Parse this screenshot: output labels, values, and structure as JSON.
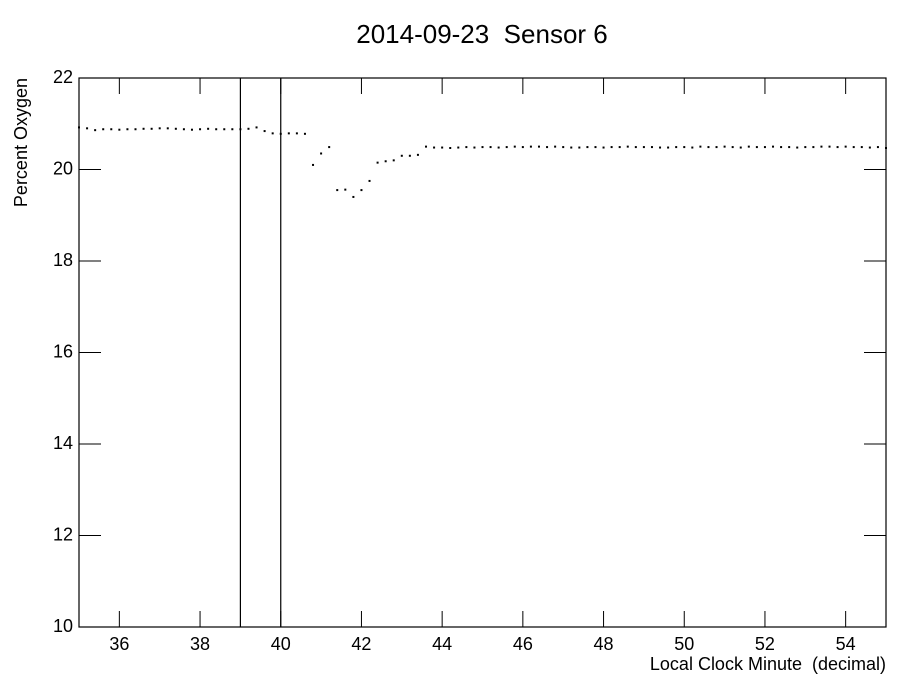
{
  "chart_data": {
    "type": "scatter",
    "title": "2014-09-23  Sensor 6",
    "x_label": "Local Clock Minute  (decimal)",
    "y_label": "Percent Oxygen",
    "xlim": [
      35,
      55
    ],
    "ylim": [
      10,
      22
    ],
    "xticks": [
      36,
      38,
      40,
      42,
      44,
      46,
      48,
      50,
      52,
      54
    ],
    "yticks": [
      10,
      12,
      14,
      16,
      18,
      20,
      22
    ],
    "vlines": [
      39,
      40
    ],
    "color": "#000000",
    "series": [
      {
        "name": "Sensor 6",
        "color": "#000000",
        "x": [
          35,
          35.2,
          35.4,
          35.6,
          35.8,
          36,
          36.2,
          36.4,
          36.6,
          36.8,
          37,
          37.2,
          37.4,
          37.6,
          37.8,
          38,
          38.2,
          38.4,
          38.6,
          38.8,
          39,
          39.2,
          39.4,
          39.6,
          39.8,
          40,
          40.2,
          40.4,
          40.6,
          40.8,
          41,
          41.2,
          41.4,
          41.6,
          41.8,
          42,
          42.2,
          42.4,
          42.6,
          42.8,
          43,
          43.2,
          43.4,
          43.6,
          43.8,
          44,
          44.2,
          44.4,
          44.6,
          44.8,
          45,
          45.2,
          45.4,
          45.6,
          45.8,
          46,
          46.2,
          46.4,
          46.6,
          46.8,
          47,
          47.2,
          47.4,
          47.6,
          47.8,
          48,
          48.2,
          48.4,
          48.6,
          48.8,
          49,
          49.2,
          49.4,
          49.6,
          49.8,
          50,
          50.2,
          50.4,
          50.6,
          50.8,
          51,
          51.2,
          51.4,
          51.6,
          51.8,
          52,
          52.2,
          52.4,
          52.6,
          52.8,
          53,
          53.2,
          53.4,
          53.6,
          53.8,
          54,
          54.2,
          54.4,
          54.6,
          54.8,
          55
        ],
        "values": [
          20.92,
          20.9,
          20.86,
          20.88,
          20.88,
          20.87,
          20.88,
          20.88,
          20.89,
          20.89,
          20.9,
          20.9,
          20.89,
          20.88,
          20.87,
          20.88,
          20.89,
          20.88,
          20.88,
          20.88,
          20.88,
          20.89,
          20.92,
          20.84,
          20.79,
          20.78,
          20.79,
          20.79,
          20.78,
          20.1,
          20.35,
          20.49,
          19.55,
          19.56,
          19.4,
          19.55,
          19.75,
          20.15,
          20.18,
          20.2,
          20.3,
          20.3,
          20.32,
          20.5,
          20.48,
          20.48,
          20.47,
          20.48,
          20.49,
          20.48,
          20.49,
          20.49,
          20.48,
          20.49,
          20.5,
          20.49,
          20.5,
          20.5,
          20.49,
          20.5,
          20.49,
          20.48,
          20.48,
          20.49,
          20.49,
          20.48,
          20.49,
          20.49,
          20.5,
          20.49,
          20.49,
          20.49,
          20.48,
          20.48,
          20.49,
          20.49,
          20.48,
          20.5,
          20.49,
          20.49,
          20.5,
          20.49,
          20.48,
          20.5,
          20.49,
          20.49,
          20.5,
          20.49,
          20.49,
          20.48,
          20.49,
          20.49,
          20.5,
          20.5,
          20.49,
          20.5,
          20.49,
          20.49,
          20.48,
          20.49,
          20.47
        ]
      }
    ]
  }
}
